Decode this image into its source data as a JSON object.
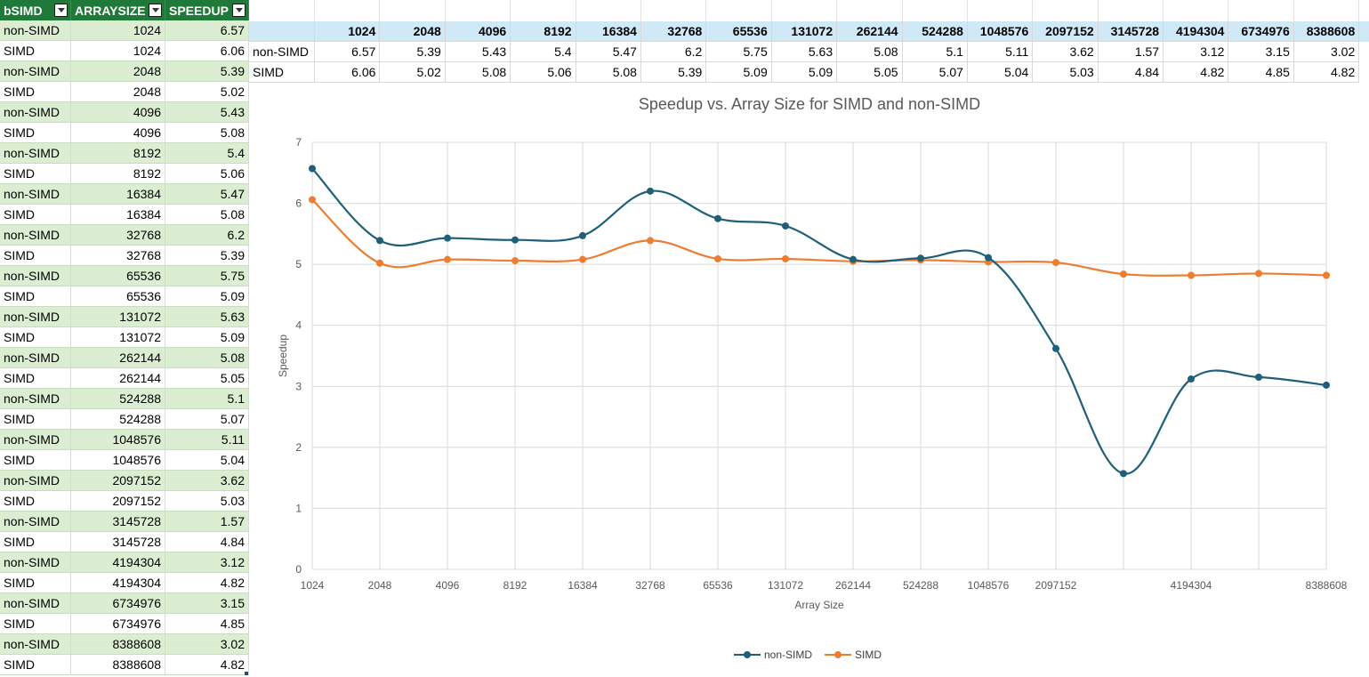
{
  "left_table": {
    "headers": [
      "bSIMD",
      "ARRAYSIZE",
      "SPEEDUP"
    ],
    "rows": [
      [
        "non-SIMD",
        "1024",
        "6.57"
      ],
      [
        "SIMD",
        "1024",
        "6.06"
      ],
      [
        "non-SIMD",
        "2048",
        "5.39"
      ],
      [
        "SIMD",
        "2048",
        "5.02"
      ],
      [
        "non-SIMD",
        "4096",
        "5.43"
      ],
      [
        "SIMD",
        "4096",
        "5.08"
      ],
      [
        "non-SIMD",
        "8192",
        "5.4"
      ],
      [
        "SIMD",
        "8192",
        "5.06"
      ],
      [
        "non-SIMD",
        "16384",
        "5.47"
      ],
      [
        "SIMD",
        "16384",
        "5.08"
      ],
      [
        "non-SIMD",
        "32768",
        "6.2"
      ],
      [
        "SIMD",
        "32768",
        "5.39"
      ],
      [
        "non-SIMD",
        "65536",
        "5.75"
      ],
      [
        "SIMD",
        "65536",
        "5.09"
      ],
      [
        "non-SIMD",
        "131072",
        "5.63"
      ],
      [
        "SIMD",
        "131072",
        "5.09"
      ],
      [
        "non-SIMD",
        "262144",
        "5.08"
      ],
      [
        "SIMD",
        "262144",
        "5.05"
      ],
      [
        "non-SIMD",
        "524288",
        "5.1"
      ],
      [
        "SIMD",
        "524288",
        "5.07"
      ],
      [
        "non-SIMD",
        "1048576",
        "5.11"
      ],
      [
        "SIMD",
        "1048576",
        "5.04"
      ],
      [
        "non-SIMD",
        "2097152",
        "3.62"
      ],
      [
        "SIMD",
        "2097152",
        "5.03"
      ],
      [
        "non-SIMD",
        "3145728",
        "1.57"
      ],
      [
        "SIMD",
        "3145728",
        "4.84"
      ],
      [
        "non-SIMD",
        "4194304",
        "3.12"
      ],
      [
        "SIMD",
        "4194304",
        "4.82"
      ],
      [
        "non-SIMD",
        "6734976",
        "3.15"
      ],
      [
        "SIMD",
        "6734976",
        "4.85"
      ],
      [
        "non-SIMD",
        "8388608",
        "3.02"
      ],
      [
        "SIMD",
        "8388608",
        "4.82"
      ]
    ]
  },
  "top_table": {
    "header": [
      "1024",
      "2048",
      "4096",
      "8192",
      "16384",
      "32768",
      "65536",
      "131072",
      "262144",
      "524288",
      "1048576",
      "2097152",
      "3145728",
      "4194304",
      "6734976",
      "8388608"
    ],
    "rows": [
      {
        "label": "non-SIMD",
        "values": [
          "6.57",
          "5.39",
          "5.43",
          "5.4",
          "5.47",
          "6.2",
          "5.75",
          "5.63",
          "5.08",
          "5.1",
          "5.11",
          "3.62",
          "1.57",
          "3.12",
          "3.15",
          "3.02"
        ]
      },
      {
        "label": "SIMD",
        "values": [
          "6.06",
          "5.02",
          "5.08",
          "5.06",
          "5.08",
          "5.39",
          "5.09",
          "5.09",
          "5.05",
          "5.07",
          "5.04",
          "5.03",
          "4.84",
          "4.82",
          "4.85",
          "4.82"
        ]
      }
    ]
  },
  "chart_data": {
    "type": "line",
    "title": "Speedup vs. Array Size for SIMD and non-SIMD",
    "xlabel": "Array Size",
    "ylabel": "Speedup",
    "x": [
      1024,
      2048,
      4096,
      8192,
      16384,
      32768,
      65536,
      131072,
      262144,
      524288,
      1048576,
      2097152,
      3145728,
      4194304,
      6734976,
      8388608
    ],
    "x_tick_labels": [
      "1024",
      "2048",
      "4096",
      "8192",
      "16384",
      "32768",
      "65536",
      "131072",
      "262144",
      "524288",
      "1048576",
      "2097152",
      "4194304",
      "8388608"
    ],
    "ylim": [
      0,
      7
    ],
    "y_ticks": [
      0,
      1,
      2,
      3,
      4,
      5,
      6,
      7
    ],
    "grid": true,
    "smooth": true,
    "legend_position": "bottom",
    "series": [
      {
        "name": "non-SIMD",
        "color": "#1f5f7a",
        "values": [
          6.57,
          5.39,
          5.43,
          5.4,
          5.47,
          6.2,
          5.75,
          5.63,
          5.08,
          5.1,
          5.11,
          3.62,
          1.57,
          3.12,
          3.15,
          3.02
        ]
      },
      {
        "name": "SIMD",
        "color": "#ed7d31",
        "values": [
          6.06,
          5.02,
          5.08,
          5.06,
          5.08,
          5.39,
          5.09,
          5.09,
          5.05,
          5.07,
          5.04,
          5.03,
          4.84,
          4.82,
          4.85,
          4.82
        ]
      }
    ]
  }
}
